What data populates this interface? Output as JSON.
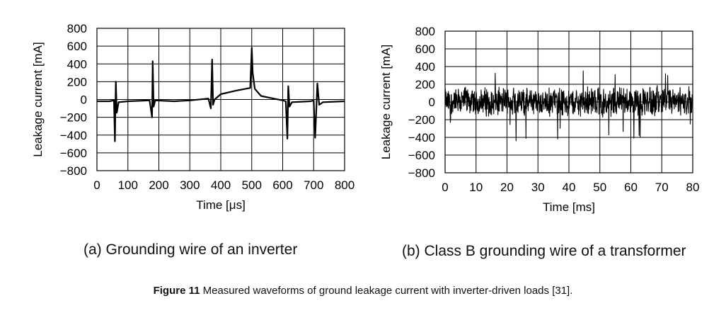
{
  "chart_data": [
    {
      "type": "line",
      "x": [
        0,
        40,
        55,
        58,
        61,
        64,
        70,
        100,
        170,
        178,
        180,
        183,
        188,
        250,
        300,
        360,
        368,
        372,
        375,
        380,
        400,
        450,
        495,
        500,
        503,
        510,
        530,
        600,
        610,
        615,
        618,
        622,
        630,
        690,
        700,
        705,
        712,
        718,
        730,
        800
      ],
      "series": [
        {
          "values": [
            -20,
            -20,
            -10,
            -470,
            200,
            -150,
            -30,
            -20,
            -10,
            -200,
            430,
            -80,
            -10,
            -20,
            -10,
            10,
            -100,
            450,
            -60,
            0,
            60,
            100,
            130,
            580,
            300,
            120,
            40,
            -10,
            -20,
            -440,
            150,
            -80,
            -30,
            -20,
            -10,
            -430,
            180,
            -60,
            -30,
            -20
          ]
        }
      ],
      "xlabel": "Time [μs]",
      "ylabel": "Leakage current [mA]",
      "xlim": [
        0,
        800
      ],
      "ylim": [
        -800,
        800
      ],
      "xticks": [
        "0",
        "100",
        "200",
        "300",
        "400",
        "500",
        "600",
        "700",
        "800"
      ],
      "yticks": [
        "800",
        "600",
        "400",
        "200",
        "0",
        "−200",
        "−400",
        "−600",
        "−800"
      ],
      "grid": true
    },
    {
      "type": "line",
      "description_of_series": "noisy waveform around 0 mA with peaks up to about ±400 mA over 0–80 ms",
      "series": [
        {
          "values_range": [
            -450,
            420
          ]
        }
      ],
      "xlabel": "Time [ms]",
      "ylabel": "Leakage current [mA]",
      "xlim": [
        0,
        80
      ],
      "ylim": [
        -800,
        800
      ],
      "xticks": [
        "0",
        "10",
        "20",
        "30",
        "40",
        "50",
        "60",
        "70",
        "80"
      ],
      "yticks": [
        "800",
        "600",
        "400",
        "200",
        "0",
        "−200",
        "−400",
        "−600",
        "−800"
      ],
      "grid": true
    }
  ],
  "subcaptions": {
    "a": "(a) Grounding wire of an inverter",
    "b": "(b) Class B grounding wire of a transformer"
  },
  "caption": {
    "label": "Figure 11",
    "text": " Measured waveforms of ground leakage current with inverter-driven loads [31]."
  }
}
